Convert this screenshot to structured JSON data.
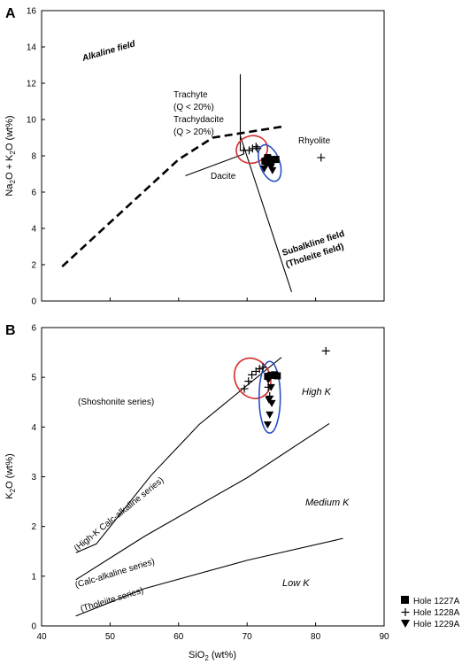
{
  "colors": {
    "ellipse_1228A": "#d42a2a",
    "ellipse_1227A_1229A": "#2a4fc4",
    "axes": "#000000"
  },
  "panelA": {
    "label": "A",
    "ylabel_main": "Na",
    "ylabel_sub1": "2",
    "ylabel_mid": "O + K",
    "ylabel_sub2": "2",
    "ylabel_unit": "O (wt%)",
    "annotations": {
      "alkaline_field": "Alkaline field",
      "trachyte": "Trachyte",
      "q_lt_20": "(Q < 20%)",
      "trachydacite": "Trachydacite",
      "q_gt_20": "(Q > 20%)",
      "rhyolite": "Rhyolite",
      "dacite": "Dacite",
      "subalkaline": "Subalkline field",
      "tholeiite": "(Tholeite field)"
    }
  },
  "panelB": {
    "label": "B",
    "ylabel_main": "K",
    "ylabel_sub": "2",
    "ylabel_unit": "O (wt%)",
    "xlabel_main": "SiO",
    "xlabel_sub": "2",
    "xlabel_unit": " (wt%)",
    "annotations": {
      "shoshonite": "(Shoshonite series)",
      "highk_calc": "(High-K Calc-alkaline series)",
      "calc_alk": "(Calc-alkaline series)",
      "tholeiite_series": "(Tholeiite series)",
      "high_k": "High K",
      "medium_k": "Medium K",
      "low_k": "Low K"
    }
  },
  "legend": [
    {
      "label": "Hole 1227A",
      "marker": "square"
    },
    {
      "label": "Hole 1228A",
      "marker": "plus"
    },
    {
      "label": "Hole 1229A",
      "marker": "triangle-down"
    }
  ],
  "chart_data": [
    {
      "type": "scatter",
      "title": "",
      "xlim": [
        40,
        90
      ],
      "ylim": [
        0,
        16
      ],
      "yticks": [
        0,
        2,
        4,
        6,
        8,
        10,
        12,
        14,
        16
      ],
      "grid": false,
      "boundaries": {
        "alkaline_subalkaline_dashed": [
          [
            43,
            1.9
          ],
          [
            60,
            7.8
          ],
          [
            65,
            9.0
          ],
          [
            75,
            9.6
          ]
        ],
        "trachyte_rhyolite_vertical": [
          [
            69,
            8.3
          ],
          [
            69,
            12.5
          ]
        ],
        "dacite_boundary": [
          [
            61,
            6.9
          ],
          [
            69.5,
            8.1
          ]
        ],
        "subalkaline_diagonal": [
          [
            69,
            9.1
          ],
          [
            76.5,
            0.5
          ]
        ]
      },
      "series": [
        {
          "name": "Hole 1228A",
          "marker": "plus",
          "points": [
            [
              69.5,
              8.3
            ],
            [
              70.3,
              8.3
            ],
            [
              70.8,
              8.4
            ],
            [
              71.3,
              8.5
            ],
            [
              71.5,
              8.4
            ],
            [
              80.8,
              7.9
            ]
          ]
        },
        {
          "name": "Hole 1227A",
          "marker": "square",
          "points": [
            [
              72.6,
              7.7
            ],
            [
              73.0,
              7.9
            ],
            [
              73.4,
              7.6
            ],
            [
              73.8,
              7.8
            ],
            [
              74.2,
              7.8
            ]
          ]
        },
        {
          "name": "Hole 1229A",
          "marker": "triangle-down",
          "points": [
            [
              72.5,
              7.3
            ],
            [
              72.8,
              7.5
            ],
            [
              73.2,
              7.6
            ],
            [
              73.5,
              7.4
            ],
            [
              73.7,
              7.2
            ]
          ]
        }
      ],
      "ellipses": [
        {
          "around": "Hole 1228A",
          "cx": 70.7,
          "cy": 8.35,
          "rx": 2.3,
          "ry": 0.75,
          "angle": -15
        },
        {
          "around": "Hole 1227A + Hole 1229A",
          "cx": 73.3,
          "cy": 7.6,
          "rx": 1.45,
          "ry": 1.05,
          "angle": -20
        }
      ]
    },
    {
      "type": "scatter",
      "title": "",
      "xlabel": "SiO2 (wt%)",
      "ylabel": "K2O (wt%)",
      "xlim": [
        40,
        90
      ],
      "ylim": [
        0,
        6
      ],
      "xticks": [
        40,
        50,
        60,
        70,
        80,
        90
      ],
      "yticks": [
        0,
        1,
        2,
        3,
        4,
        5,
        6
      ],
      "grid": false,
      "boundaries": {
        "shoshonite_highk": [
          [
            45,
            1.47
          ],
          [
            48,
            1.65
          ],
          [
            56,
            3.03
          ],
          [
            63,
            4.05
          ],
          [
            75,
            5.4
          ]
        ],
        "highk_calcalk": [
          [
            45,
            0.93
          ],
          [
            55,
            1.8
          ],
          [
            70,
            2.98
          ],
          [
            82,
            4.07
          ]
        ],
        "calcalk_tholeiite": [
          [
            45,
            0.2
          ],
          [
            55,
            0.75
          ],
          [
            70,
            1.32
          ],
          [
            84,
            1.76
          ]
        ]
      },
      "series": [
        {
          "name": "Hole 1228A",
          "marker": "plus",
          "points": [
            [
              69.6,
              4.77
            ],
            [
              70.2,
              4.92
            ],
            [
              70.7,
              5.05
            ],
            [
              71.3,
              5.12
            ],
            [
              71.8,
              5.17
            ],
            [
              72.3,
              5.2
            ],
            [
              73.1,
              4.8
            ],
            [
              73.3,
              4.62
            ],
            [
              81.5,
              5.53
            ]
          ]
        },
        {
          "name": "Hole 1227A",
          "marker": "square",
          "points": [
            [
              73.0,
              5.02
            ],
            [
              73.5,
              5.04
            ],
            [
              74.0,
              5.05
            ],
            [
              74.4,
              5.03
            ]
          ]
        },
        {
          "name": "Hole 1229A",
          "marker": "triangle-down",
          "points": [
            [
              73.1,
              4.95
            ],
            [
              73.5,
              4.8
            ],
            [
              73.2,
              4.55
            ],
            [
              73.6,
              4.48
            ],
            [
              73.3,
              4.25
            ],
            [
              73.0,
              4.05
            ]
          ]
        }
      ],
      "ellipses": [
        {
          "around": "Hole 1228A",
          "cx": 70.8,
          "cy": 4.98,
          "rx": 2.55,
          "ry": 0.42,
          "angle": -28
        },
        {
          "around": "Hole 1227A + Hole 1229A",
          "cx": 73.3,
          "cy": 4.6,
          "rx": 1.55,
          "ry": 0.72,
          "angle": 0
        }
      ]
    }
  ]
}
